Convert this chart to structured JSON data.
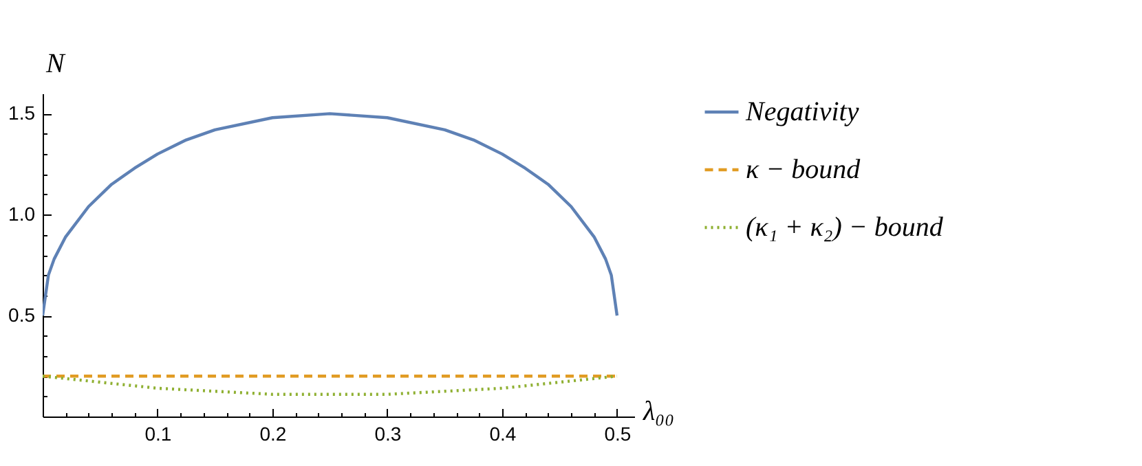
{
  "chart_data": {
    "type": "line",
    "xlabel": "λ₀₀",
    "ylabel": "N",
    "xlim": [
      0,
      0.515
    ],
    "ylim": [
      0,
      1.6
    ],
    "xticks": [
      {
        "value": 0.02,
        "label": null
      },
      {
        "value": 0.04,
        "label": null
      },
      {
        "value": 0.06,
        "label": null
      },
      {
        "value": 0.08,
        "label": null
      },
      0.1,
      {
        "value": 0.12,
        "label": null
      },
      {
        "value": 0.14,
        "label": null
      },
      {
        "value": 0.16,
        "label": null
      },
      {
        "value": 0.18,
        "label": null
      },
      0.2,
      {
        "value": 0.22,
        "label": null
      },
      {
        "value": 0.24,
        "label": null
      },
      {
        "value": 0.26,
        "label": null
      },
      {
        "value": 0.28,
        "label": null
      },
      0.3,
      {
        "value": 0.32,
        "label": null
      },
      {
        "value": 0.34,
        "label": null
      },
      {
        "value": 0.36,
        "label": null
      },
      {
        "value": 0.38,
        "label": null
      },
      0.4,
      {
        "value": 0.42,
        "label": null
      },
      {
        "value": 0.44,
        "label": null
      },
      {
        "value": 0.46,
        "label": null
      },
      {
        "value": 0.48,
        "label": null
      },
      0.5
    ],
    "yticks": [
      {
        "value": 0.1,
        "label": null
      },
      {
        "value": 0.2,
        "label": null
      },
      {
        "value": 0.3,
        "label": null
      },
      {
        "value": 0.4,
        "label": null
      },
      0.5,
      {
        "value": 0.6,
        "label": null
      },
      {
        "value": 0.7,
        "label": null
      },
      {
        "value": 0.8,
        "label": null
      },
      {
        "value": 0.9,
        "label": null
      },
      {
        "value": 1,
        "label": "1.0"
      },
      {
        "value": 1.1,
        "label": null
      },
      {
        "value": 1.2,
        "label": null
      },
      {
        "value": 1.3,
        "label": null
      },
      {
        "value": 1.4,
        "label": null
      },
      1.5
    ],
    "legend": "right",
    "grid": false,
    "marker": "none",
    "series": [
      {
        "name": "Negativity",
        "color": "#5e81b5",
        "line_style": "solid",
        "x": [
          0,
          0.005,
          0.01,
          0.02,
          0.04,
          0.06,
          0.08,
          0.1,
          0.125,
          0.15,
          0.2,
          0.25,
          0.3,
          0.35,
          0.375,
          0.4,
          0.42,
          0.44,
          0.46,
          0.48,
          0.49,
          0.495,
          0.5
        ],
        "values": [
          0.5,
          0.7,
          0.78,
          0.89,
          1.04,
          1.15,
          1.23,
          1.3,
          1.37,
          1.42,
          1.48,
          1.5,
          1.48,
          1.42,
          1.37,
          1.3,
          1.23,
          1.15,
          1.04,
          0.89,
          0.78,
          0.7,
          0.5
        ]
      },
      {
        "name": "κ − bound",
        "color": "#e19c24",
        "line_style": "dashed",
        "x": [
          0,
          0.5
        ],
        "values": [
          0.2,
          0.2
        ]
      },
      {
        "name": "(κ₁ + κ₂) − bound",
        "color": "#8fb032",
        "line_style": "dotted",
        "x": [
          0,
          0.05,
          0.1,
          0.15,
          0.2,
          0.25,
          0.3,
          0.35,
          0.4,
          0.45,
          0.5
        ],
        "values": [
          0.2,
          0.17,
          0.14,
          0.125,
          0.11,
          0.11,
          0.11,
          0.125,
          0.14,
          0.17,
          0.2
        ]
      }
    ]
  }
}
